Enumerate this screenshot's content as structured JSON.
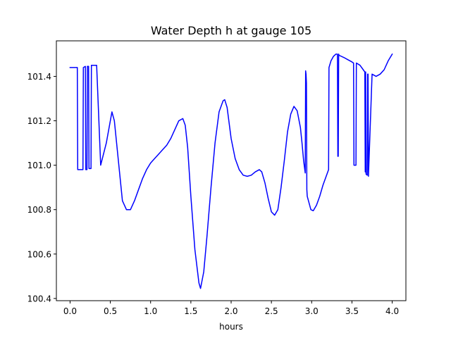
{
  "chart_data": {
    "type": "line",
    "title": "Water Depth h at gauge 105",
    "xlabel": "hours",
    "ylabel": "",
    "xlim": [
      -0.17,
      4.17
    ],
    "ylim": [
      100.39,
      101.56
    ],
    "grid": false,
    "legend": "none",
    "xticks": [
      0.0,
      0.5,
      1.0,
      1.5,
      2.0,
      2.5,
      3.0,
      3.5,
      4.0
    ],
    "xtick_labels": [
      "0.0",
      "0.5",
      "1.0",
      "1.5",
      "2.0",
      "2.5",
      "3.0",
      "3.5",
      "4.0"
    ],
    "yticks": [
      100.4,
      100.6,
      100.8,
      101.0,
      101.2,
      101.4
    ],
    "ytick_labels": [
      "100.4",
      "100.6",
      "100.8",
      "101.0",
      "101.2",
      "101.4"
    ],
    "series": [
      {
        "name": "",
        "color": "#0000ff",
        "x": [
          0.0,
          0.09,
          0.095,
          0.16,
          0.165,
          0.19,
          0.195,
          0.21,
          0.215,
          0.23,
          0.235,
          0.26,
          0.265,
          0.3,
          0.33,
          0.38,
          0.45,
          0.5,
          0.52,
          0.55,
          0.6,
          0.65,
          0.7,
          0.75,
          0.8,
          0.85,
          0.9,
          0.95,
          1.0,
          1.05,
          1.1,
          1.15,
          1.2,
          1.25,
          1.3,
          1.35,
          1.4,
          1.43,
          1.46,
          1.5,
          1.55,
          1.6,
          1.62,
          1.66,
          1.7,
          1.75,
          1.8,
          1.85,
          1.9,
          1.92,
          1.95,
          2.0,
          2.05,
          2.1,
          2.15,
          2.2,
          2.25,
          2.3,
          2.35,
          2.38,
          2.42,
          2.46,
          2.5,
          2.54,
          2.58,
          2.62,
          2.66,
          2.7,
          2.74,
          2.78,
          2.82,
          2.86,
          2.88,
          2.9,
          2.92,
          2.925,
          2.93,
          2.935,
          2.94,
          2.945,
          2.96,
          2.99,
          3.02,
          3.06,
          3.1,
          3.14,
          3.18,
          3.21,
          3.215,
          3.24,
          3.27,
          3.3,
          3.32,
          3.325,
          3.33,
          3.335,
          3.34,
          3.4,
          3.45,
          3.5,
          3.52,
          3.525,
          3.55,
          3.555,
          3.6,
          3.64,
          3.66,
          3.665,
          3.67,
          3.675,
          3.69,
          3.695,
          3.7,
          3.705,
          3.75,
          3.8,
          3.85,
          3.9,
          3.95,
          4.0
        ],
        "y": [
          101.44,
          101.44,
          100.98,
          100.98,
          101.44,
          101.445,
          100.98,
          100.98,
          101.445,
          101.445,
          100.985,
          100.985,
          101.45,
          101.45,
          101.45,
          101.0,
          101.1,
          101.2,
          101.24,
          101.2,
          101.02,
          100.84,
          100.8,
          100.8,
          100.84,
          100.89,
          100.94,
          100.98,
          101.01,
          101.03,
          101.05,
          101.07,
          101.09,
          101.12,
          101.16,
          101.2,
          101.21,
          101.18,
          101.08,
          100.86,
          100.62,
          100.47,
          100.445,
          100.52,
          100.68,
          100.9,
          101.1,
          101.24,
          101.29,
          101.295,
          101.26,
          101.12,
          101.03,
          100.98,
          100.955,
          100.95,
          100.955,
          100.97,
          100.98,
          100.97,
          100.92,
          100.85,
          100.79,
          100.775,
          100.8,
          100.9,
          101.02,
          101.15,
          101.23,
          101.265,
          101.245,
          101.17,
          101.1,
          101.02,
          100.965,
          101.425,
          101.41,
          101.37,
          100.89,
          100.86,
          100.84,
          100.8,
          100.795,
          100.82,
          100.86,
          100.91,
          100.95,
          100.98,
          101.44,
          101.47,
          101.49,
          101.5,
          101.5,
          101.04,
          101.04,
          101.5,
          101.495,
          101.485,
          101.475,
          101.465,
          101.46,
          101.0,
          101.0,
          101.46,
          101.45,
          101.43,
          101.42,
          100.97,
          101.42,
          100.96,
          100.955,
          101.41,
          101.41,
          100.95,
          101.41,
          101.4,
          101.41,
          101.43,
          101.47,
          101.5
        ]
      }
    ]
  }
}
